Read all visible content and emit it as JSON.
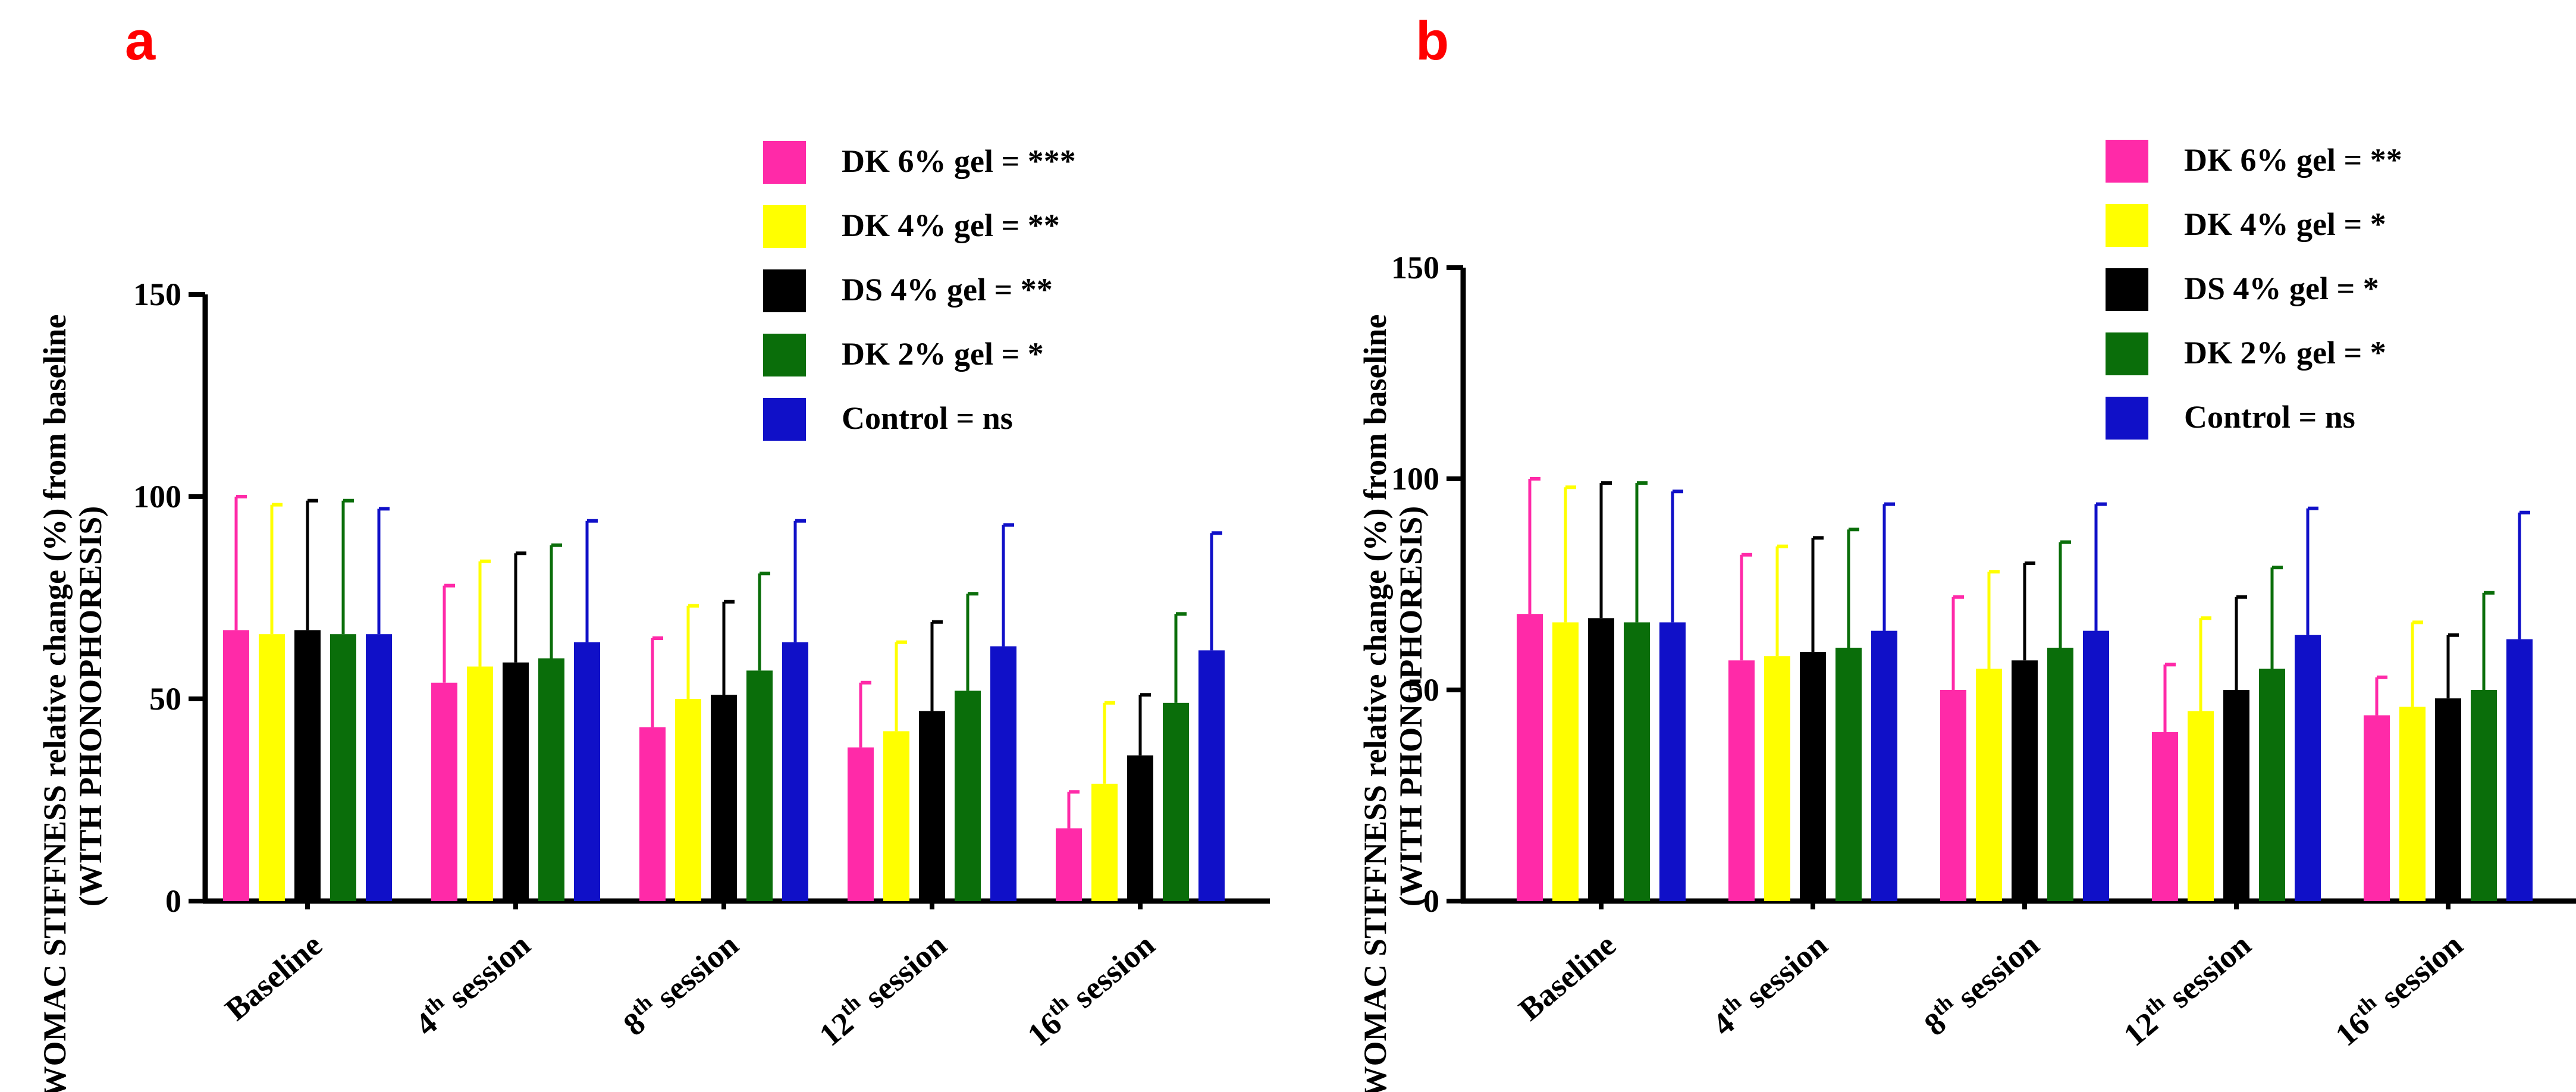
{
  "chart_data": [
    {
      "panel": "a",
      "type": "bar",
      "ylabel_line1": "WOMAC STIFFNESS relative change (%) from baseline",
      "ylabel_line2": "(WITH PHONOPHORESIS)",
      "xlabel": "",
      "ylim": [
        0,
        150
      ],
      "yticks": [
        "0",
        "50",
        "100",
        "150"
      ],
      "categories": [
        {
          "base": "Baseline",
          "sup": "",
          "rest": ""
        },
        {
          "base": "4",
          "sup": "th",
          "rest": " session"
        },
        {
          "base": "8",
          "sup": "th",
          "rest": " session"
        },
        {
          "base": "12",
          "sup": "th",
          "rest": " session"
        },
        {
          "base": "16",
          "sup": "th",
          "rest": " session"
        }
      ],
      "series": [
        {
          "name": "DK 6% gel",
          "legend": "DK 6% gel = ***",
          "color": "#ff2aa8",
          "values": [
            67,
            54,
            43,
            38,
            18
          ],
          "errors": [
            33,
            24,
            22,
            16,
            9
          ]
        },
        {
          "name": "DK 4% gel",
          "legend": "DK 4% gel = **",
          "color": "#ffff00",
          "values": [
            66,
            58,
            50,
            42,
            29
          ],
          "errors": [
            32,
            26,
            23,
            22,
            20
          ]
        },
        {
          "name": "DS 4% gel",
          "legend": "DS 4% gel = **",
          "color": "#000000",
          "values": [
            67,
            59,
            51,
            47,
            36
          ],
          "errors": [
            32,
            27,
            23,
            22,
            15
          ]
        },
        {
          "name": "DK 2% gel",
          "legend": "DK 2% gel = *",
          "color": "#0a6e0a",
          "values": [
            66,
            60,
            57,
            52,
            49
          ],
          "errors": [
            33,
            28,
            24,
            24,
            22
          ]
        },
        {
          "name": "Control",
          "legend": "Control = ns",
          "color": "#1010c8",
          "values": [
            66,
            64,
            64,
            63,
            62
          ],
          "errors": [
            31,
            30,
            30,
            30,
            29
          ]
        }
      ]
    },
    {
      "panel": "b",
      "type": "bar",
      "ylabel_line1": "WOMAC STIFFNESS relative change (%) from baseline",
      "ylabel_line2": "(WITH PHONOPHORESIS)",
      "xlabel": "",
      "ylim": [
        0,
        150
      ],
      "yticks": [
        "0",
        "50",
        "100",
        "150"
      ],
      "categories": [
        {
          "base": "Baseline",
          "sup": "",
          "rest": ""
        },
        {
          "base": "4",
          "sup": "th",
          "rest": " session"
        },
        {
          "base": "8",
          "sup": "th",
          "rest": " session"
        },
        {
          "base": "12",
          "sup": "th",
          "rest": " session"
        },
        {
          "base": "16",
          "sup": "th",
          "rest": " session"
        }
      ],
      "series": [
        {
          "name": "DK 6% gel",
          "legend": "DK 6% gel = **",
          "color": "#ff2aa8",
          "values": [
            68,
            57,
            50,
            40,
            44
          ],
          "errors": [
            32,
            25,
            22,
            16,
            9
          ]
        },
        {
          "name": "DK 4% gel",
          "legend": "DK 4% gel = *",
          "color": "#ffff00",
          "values": [
            66,
            58,
            55,
            45,
            46
          ],
          "errors": [
            32,
            26,
            23,
            22,
            20
          ]
        },
        {
          "name": "DS 4% gel",
          "legend": "DS 4% gel = *",
          "color": "#000000",
          "values": [
            67,
            59,
            57,
            50,
            48
          ],
          "errors": [
            32,
            27,
            23,
            22,
            15
          ]
        },
        {
          "name": "DK 2% gel",
          "legend": "DK 2% gel = *",
          "color": "#0a6e0a",
          "values": [
            66,
            60,
            60,
            55,
            50
          ],
          "errors": [
            33,
            28,
            25,
            24,
            23
          ]
        },
        {
          "name": "Control",
          "legend": "Control = ns",
          "color": "#1010c8",
          "values": [
            66,
            64,
            64,
            63,
            62
          ],
          "errors": [
            31,
            30,
            30,
            30,
            30
          ]
        }
      ]
    }
  ]
}
